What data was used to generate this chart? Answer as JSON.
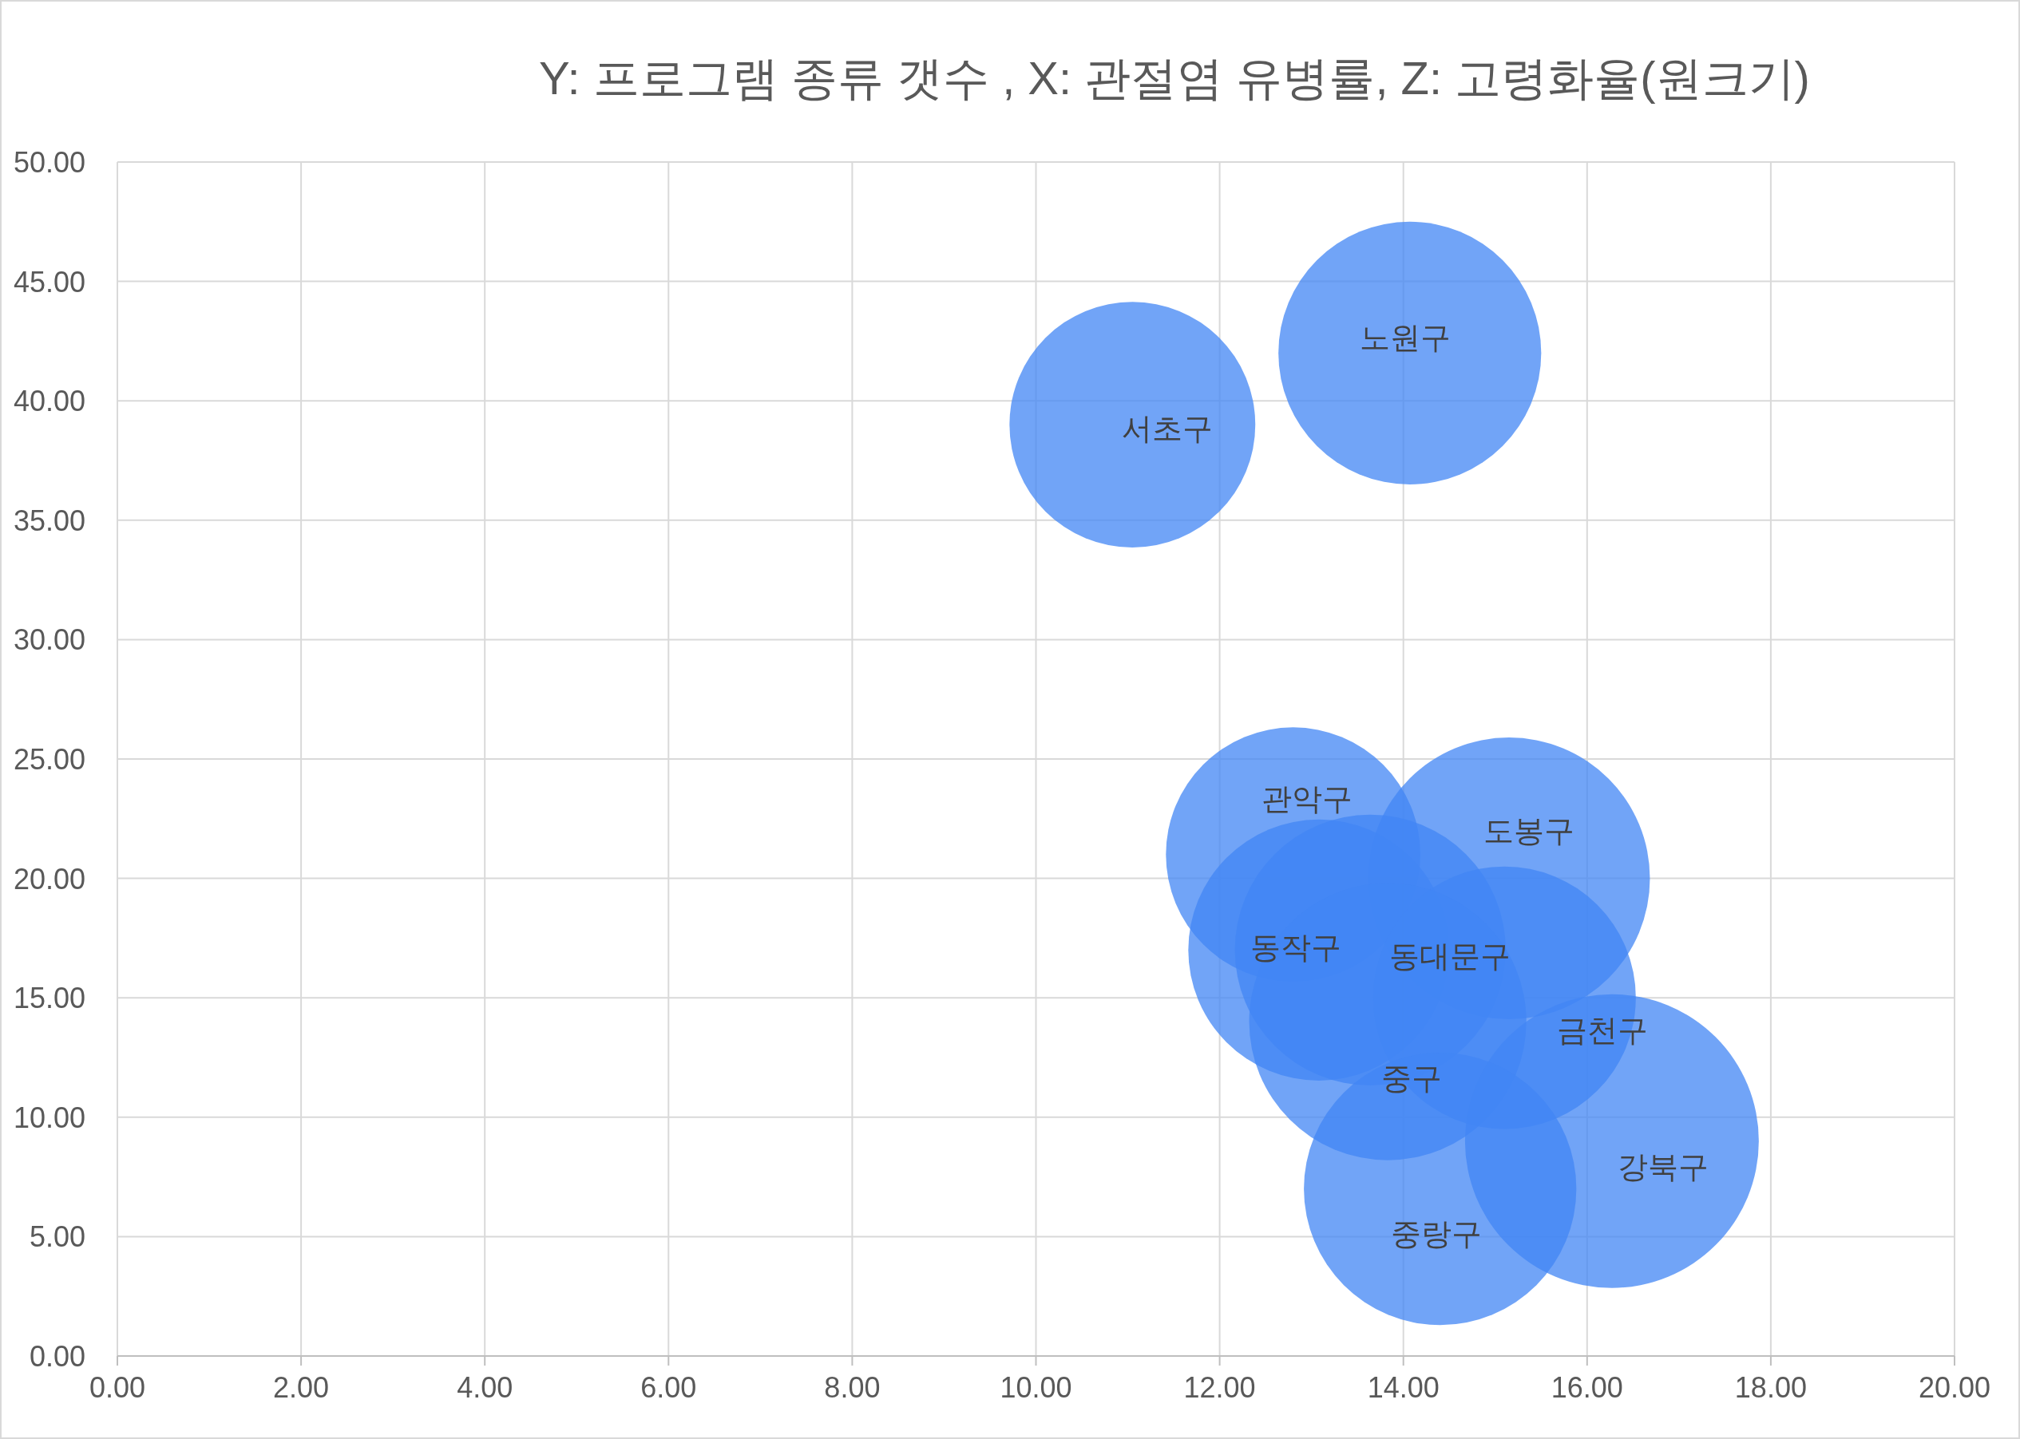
{
  "chart_data": {
    "type": "bubble",
    "title": "Y: 프로그램 종류 갯수 , X: 관절염 유병률, Z: 고령화율(원크기)",
    "series": [
      {
        "name": "서초구",
        "color": "#4285f4",
        "x": [
          11.05
        ],
        "values": [
          39
        ],
        "sizes": [
          0.7
        ]
      },
      {
        "name": "노원구",
        "color": "#4285f4",
        "x": [
          14.07
        ],
        "values": [
          42
        ],
        "sizes": [
          0.8
        ]
      },
      {
        "name": "관악구",
        "color": "#4285f4",
        "x": [
          12.8
        ],
        "values": [
          21
        ],
        "sizes": [
          0.75
        ]
      },
      {
        "name": "도봉구",
        "color": "#4285f4",
        "x": [
          15.15
        ],
        "values": [
          20
        ],
        "sizes": [
          0.92
        ]
      },
      {
        "name": "동작구",
        "color": "#4285f4",
        "x": [
          13.08
        ],
        "values": [
          17
        ],
        "sizes": [
          0.79
        ]
      },
      {
        "name": "동대문구",
        "color": "#4285f4",
        "x": [
          13.64
        ],
        "values": [
          17
        ],
        "sizes": [
          0.85
        ]
      },
      {
        "name": "금천구",
        "color": "#4285f4",
        "x": [
          15.1
        ],
        "values": [
          15
        ],
        "sizes": [
          0.8
        ]
      },
      {
        "name": "중구",
        "color": "#4285f4",
        "x": [
          13.83
        ],
        "values": [
          14
        ],
        "sizes": [
          0.89
        ]
      },
      {
        "name": "강북구",
        "color": "#4285f4",
        "x": [
          16.27
        ],
        "values": [
          9
        ],
        "sizes": [
          1
        ]
      },
      {
        "name": "중랑구",
        "color": "#4285f4",
        "x": [
          14.4
        ],
        "values": [
          7
        ],
        "sizes": [
          0.86
        ]
      }
    ],
    "xlim": [
      0,
      20
    ],
    "ylim": [
      0,
      50
    ],
    "xticks": [
      {
        "value": 0,
        "label": "0.00"
      },
      {
        "value": 2,
        "label": "2.00"
      },
      {
        "value": 4,
        "label": "4.00"
      },
      {
        "value": 6,
        "label": "6.00"
      },
      {
        "value": 8,
        "label": "8.00"
      },
      {
        "value": 10,
        "label": "10.00"
      },
      {
        "value": 12,
        "label": "12.00"
      },
      {
        "value": 14,
        "label": "14.00"
      },
      {
        "value": 16,
        "label": "16.00"
      },
      {
        "value": 18,
        "label": "18.00"
      },
      {
        "value": 20,
        "label": "20.00"
      }
    ],
    "yticks": [
      {
        "value": 0,
        "label": "0.00"
      },
      {
        "value": 5,
        "label": "5.00"
      },
      {
        "value": 10,
        "label": "10.00"
      },
      {
        "value": 15,
        "label": "15.00"
      },
      {
        "value": 20,
        "label": "20.00"
      },
      {
        "value": 25,
        "label": "25.00"
      },
      {
        "value": 30,
        "label": "30.00"
      },
      {
        "value": 35,
        "label": "35.00"
      },
      {
        "value": 40,
        "label": "40.00"
      },
      {
        "value": 45,
        "label": "45.00"
      },
      {
        "value": 50,
        "label": "50.00"
      }
    ],
    "grid": true
  }
}
